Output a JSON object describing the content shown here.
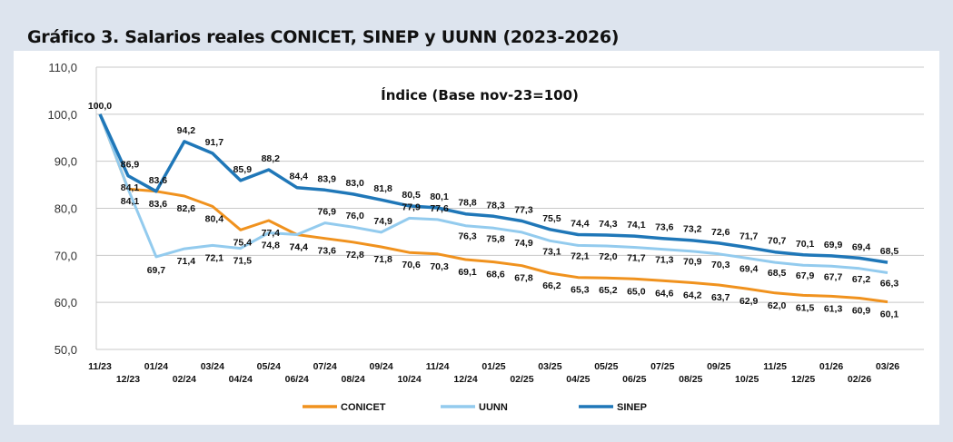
{
  "header": {
    "title": "Gráfico 3. Salarios reales CONICET, SINEP y UUNN (2023-2026)"
  },
  "chart_data": {
    "type": "line",
    "title": "Gráfico 3. Salarios reales CONICET, SINEP y UUNN (2023-2026)",
    "subtitle": "Índice (Base nov-23=100)",
    "xlabel": "",
    "ylabel": "",
    "ylim": [
      50,
      110
    ],
    "yticks": [
      "50,0",
      "60,0",
      "70,0",
      "80,0",
      "90,0",
      "100,0",
      "110,0"
    ],
    "grid": true,
    "legend_position": "bottom",
    "categories": [
      "11/23",
      "12/23",
      "01/24",
      "02/24",
      "03/24",
      "04/24",
      "05/24",
      "06/24",
      "07/24",
      "08/24",
      "09/24",
      "10/24",
      "11/24",
      "12/24",
      "01/25",
      "02/25",
      "03/25",
      "04/25",
      "05/25",
      "06/25",
      "07/25",
      "08/25",
      "09/25",
      "10/25",
      "11/25",
      "12/25",
      "01/26",
      "02/26",
      "03/26"
    ],
    "series": [
      {
        "name": "CONICET",
        "color": "#f0921e",
        "values": [
          100.0,
          84.1,
          83.6,
          82.6,
          80.4,
          75.4,
          77.4,
          74.4,
          73.6,
          72.8,
          71.8,
          70.6,
          70.3,
          69.1,
          68.6,
          67.8,
          66.2,
          65.3,
          65.2,
          65.0,
          64.6,
          64.2,
          63.7,
          62.9,
          62.0,
          61.5,
          61.3,
          60.9,
          60.1
        ],
        "labels": [
          "100,0",
          "84,1",
          "83,6",
          "82,6",
          "80,4",
          "75,4",
          "77,4",
          "74,4",
          "73,6",
          "72,8",
          "71,8",
          "70,6",
          "70,3",
          "69,1",
          "68,6",
          "67,8",
          "66,2",
          "65,3",
          "65,2",
          "65,0",
          "64,6",
          "64,2",
          "63,7",
          "62,9",
          "62,0",
          "61,5",
          "61,3",
          "60,9",
          "60,1"
        ]
      },
      {
        "name": "UUNN",
        "color": "#93cbee",
        "values": [
          100.0,
          84.1,
          69.7,
          71.4,
          72.1,
          71.5,
          74.8,
          74.4,
          76.9,
          76.0,
          74.9,
          77.9,
          77.6,
          76.3,
          75.8,
          74.9,
          73.1,
          72.1,
          72.0,
          71.7,
          71.3,
          70.9,
          70.3,
          69.4,
          68.5,
          67.9,
          67.7,
          67.2,
          66.3
        ],
        "labels": [
          "100,0",
          "84,1",
          "69,7",
          "71,4",
          "72,1",
          "71,5",
          "74,8",
          "74,4",
          "76,9",
          "76,0",
          "74,9",
          "77,9",
          "77,6",
          "76,3",
          "75,8",
          "74,9",
          "73,1",
          "72,1",
          "72,0",
          "71,7",
          "71,3",
          "70,9",
          "70,3",
          "69,4",
          "68,5",
          "67,9",
          "67,7",
          "67,2",
          "66,3"
        ]
      },
      {
        "name": "SINEP",
        "color": "#1f77b8",
        "values": [
          100.0,
          86.9,
          83.6,
          94.2,
          91.7,
          85.9,
          88.2,
          84.4,
          83.9,
          83.0,
          81.8,
          80.5,
          80.1,
          78.8,
          78.3,
          77.3,
          75.5,
          74.4,
          74.3,
          74.1,
          73.6,
          73.2,
          72.6,
          71.7,
          70.7,
          70.1,
          69.9,
          69.4,
          68.5
        ],
        "labels": [
          "100,0",
          "86,9",
          "83,6",
          "94,2",
          "91,7",
          "85,9",
          "88,2",
          "84,4",
          "83,9",
          "83,0",
          "81,8",
          "80,5",
          "80,1",
          "78,8",
          "78,3",
          "77,3",
          "75,5",
          "74,4",
          "74,3",
          "74,1",
          "73,6",
          "73,2",
          "72,6",
          "71,7",
          "70,7",
          "70,1",
          "69,9",
          "69,4",
          "68,5"
        ]
      }
    ]
  }
}
